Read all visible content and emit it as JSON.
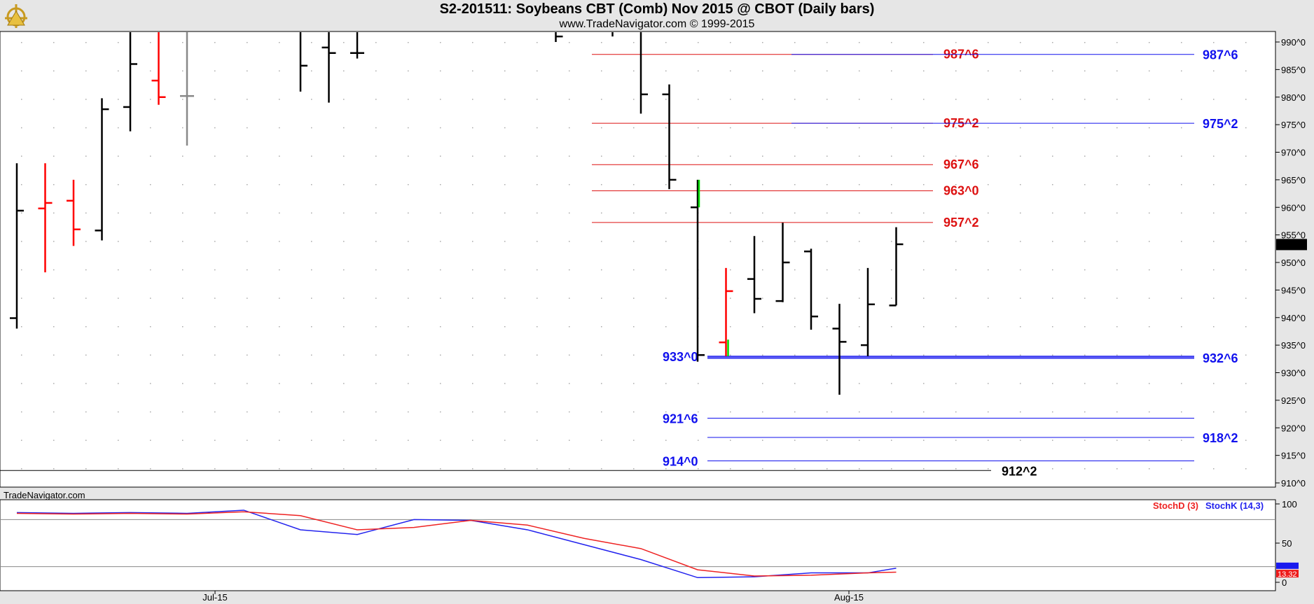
{
  "header": {
    "title": "S2-201511:  Soybeans CBT (Comb) Nov 2015 @ CBOT  (Daily bars)",
    "subtitle": "www.TradeNavigator.com © 1999-2015",
    "watermark": "TradeNavigator.com"
  },
  "colors": {
    "up": "#000000",
    "down": "#ff0000",
    "neutral": "#888888",
    "green": "#00dd00",
    "blue_level": "#1010ee",
    "red_level": "#dd1111",
    "stochK": "#2222ee",
    "stochD": "#ee2222"
  },
  "chart_data": [
    {
      "type": "ohlc",
      "title": "S2-201511:  Soybeans CBT (Comb) Nov 2015 @ CBOT  (Daily bars)",
      "ylim": [
        910,
        992
      ],
      "y_ticks": [
        "990^0",
        "985^0",
        "980^0",
        "975^0",
        "970^0",
        "965^0",
        "960^0",
        "955^0",
        "950^0",
        "945^0",
        "940^0",
        "935^0",
        "930^0",
        "925^0",
        "920^0",
        "915^0",
        "910^0"
      ],
      "y_tick_values": [
        990,
        985,
        980,
        975,
        970,
        965,
        960,
        955,
        950,
        945,
        940,
        935,
        930,
        925,
        920,
        915,
        910
      ],
      "x_labels": [
        "Jul-15",
        "Aug-15"
      ],
      "x_label_index": [
        7,
        30
      ],
      "last_price_label": "953^2",
      "last_price": 953.25,
      "bars": [
        {
          "i": 0,
          "o": 939.9,
          "h": 968.0,
          "l": 938.0,
          "c": 959.4,
          "color": "up"
        },
        {
          "i": 1,
          "o": 959.8,
          "h": 968.0,
          "l": 948.2,
          "c": 960.8,
          "color": "down"
        },
        {
          "i": 2,
          "o": 961.2,
          "h": 965.0,
          "l": 953.0,
          "c": 956.0,
          "color": "down"
        },
        {
          "i": 3,
          "o": 955.8,
          "h": 979.8,
          "l": 954.0,
          "c": 977.8,
          "color": "up"
        },
        {
          "i": 4,
          "o": 978.2,
          "h": 992.0,
          "l": 973.8,
          "c": 986.0,
          "color": "up"
        },
        {
          "i": 5,
          "o": 983.0,
          "h": 992.0,
          "l": 978.6,
          "c": 980.0,
          "color": "down"
        },
        {
          "i": 6,
          "o": 980.2,
          "h": 992.0,
          "l": 971.2,
          "c": 980.2,
          "color": "neutral"
        },
        {
          "i": 10,
          "o": 992.0,
          "h": 992.0,
          "l": 981.0,
          "c": 985.7,
          "color": "up"
        },
        {
          "i": 11,
          "o": 989.0,
          "h": 992.0,
          "l": 979.0,
          "c": 988.0,
          "color": "up"
        },
        {
          "i": 12,
          "o": 988.0,
          "h": 992.0,
          "l": 987.0,
          "c": 988.0,
          "color": "up"
        },
        {
          "i": 19,
          "o": 992.0,
          "h": 992.0,
          "l": 990.0,
          "c": 991.0,
          "color": "up"
        },
        {
          "i": 21,
          "o": 992.0,
          "h": 992.0,
          "l": 991.0,
          "c": 992.0,
          "color": "up"
        },
        {
          "i": 22,
          "o": 992.0,
          "h": 992.0,
          "l": 977.0,
          "c": 980.5,
          "color": "up"
        },
        {
          "i": 23,
          "o": 980.5,
          "h": 982.3,
          "l": 963.3,
          "c": 965.0,
          "color": "up"
        },
        {
          "i": 24,
          "o": 960.0,
          "h": 965.0,
          "l": 932.0,
          "c": 933.2,
          "color": "up"
        },
        {
          "i": 25,
          "o": 935.5,
          "h": 949.0,
          "l": 933.0,
          "c": 944.8,
          "color": "down"
        },
        {
          "i": 26,
          "o": 947.0,
          "h": 954.8,
          "l": 940.8,
          "c": 943.4,
          "color": "up"
        },
        {
          "i": 27,
          "o": 943.0,
          "h": 957.2,
          "l": 942.8,
          "c": 950.0,
          "color": "up"
        },
        {
          "i": 28,
          "o": 952.0,
          "h": 952.5,
          "l": 937.8,
          "c": 940.2,
          "color": "up"
        },
        {
          "i": 29,
          "o": 938.0,
          "h": 942.5,
          "l": 926.0,
          "c": 935.6,
          "color": "up"
        },
        {
          "i": 30,
          "o": 935.0,
          "h": 949.0,
          "l": 933.0,
          "c": 942.4,
          "color": "up"
        },
        {
          "i": 31,
          "o": 942.2,
          "h": 956.4,
          "l": 942.2,
          "c": 953.3,
          "color": "up"
        }
      ],
      "levels_red": [
        {
          "label": "987^6",
          "value": 987.75
        },
        {
          "label": "975^2",
          "value": 975.25
        },
        {
          "label": "967^6",
          "value": 967.75
        },
        {
          "label": "963^0",
          "value": 963.0
        },
        {
          "label": "957^2",
          "value": 957.25
        }
      ],
      "levels_blue_right": [
        {
          "label": "987^6",
          "value": 987.75
        },
        {
          "label": "975^2",
          "value": 975.25
        },
        {
          "label": "932^6",
          "value": 932.75
        },
        {
          "label": "918^2",
          "value": 918.25
        }
      ],
      "levels_blue_left": [
        {
          "label": "933^0",
          "value": 933.0
        },
        {
          "label": "921^6",
          "value": 921.75
        },
        {
          "label": "914^0",
          "value": 914.0
        }
      ],
      "level_black": {
        "label": "912^2",
        "value": 912.25
      }
    },
    {
      "type": "line",
      "ylim": [
        0,
        100
      ],
      "y_ticks": [
        "100",
        "50",
        "0"
      ],
      "y_tick_values": [
        100,
        50,
        0
      ],
      "ref_lines": [
        80,
        20
      ],
      "legend": [
        "StochD (3)",
        "StochK (14,3)"
      ],
      "last_values": [
        "13.32",
        "18.??"
      ],
      "series": [
        {
          "name": "StochK (14,3)",
          "color": "blue",
          "x": [
            0,
            2,
            4,
            6,
            8,
            10,
            12,
            14,
            16,
            18,
            20,
            22,
            24,
            26,
            28,
            30,
            31
          ],
          "values": [
            89,
            88,
            89,
            88,
            92,
            67,
            61,
            80,
            79,
            67,
            48,
            29,
            6,
            7,
            12,
            12,
            18
          ]
        },
        {
          "name": "StochD (3)",
          "color": "red",
          "x": [
            0,
            2,
            4,
            6,
            8,
            10,
            12,
            14,
            16,
            18,
            20,
            22,
            24,
            26,
            28,
            30,
            31
          ],
          "values": [
            88,
            87,
            88,
            87,
            90,
            85,
            67,
            70,
            79,
            73,
            56,
            43,
            16,
            8,
            9,
            12,
            13
          ]
        }
      ]
    }
  ]
}
